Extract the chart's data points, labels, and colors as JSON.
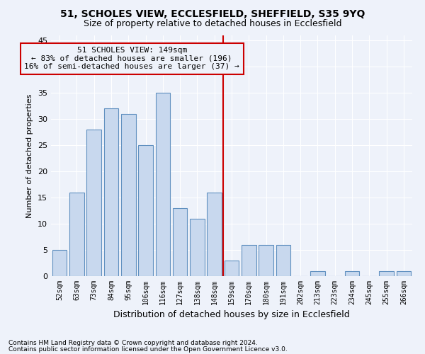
{
  "title": "51, SCHOLES VIEW, ECCLESFIELD, SHEFFIELD, S35 9YQ",
  "subtitle": "Size of property relative to detached houses in Ecclesfield",
  "xlabel": "Distribution of detached houses by size in Ecclesfield",
  "ylabel": "Number of detached properties",
  "footnote1": "Contains HM Land Registry data © Crown copyright and database right 2024.",
  "footnote2": "Contains public sector information licensed under the Open Government Licence v3.0.",
  "annotation_title": "51 SCHOLES VIEW: 149sqm",
  "annotation_line1": "← 83% of detached houses are smaller (196)",
  "annotation_line2": "16% of semi-detached houses are larger (37) →",
  "bar_color": "#c8d8ee",
  "bar_edge_color": "#6090c0",
  "vline_color": "#cc0000",
  "annotation_box_edge_color": "#cc0000",
  "background_color": "#eef2fa",
  "grid_color": "#ffffff",
  "categories": [
    "52sqm",
    "63sqm",
    "73sqm",
    "84sqm",
    "95sqm",
    "106sqm",
    "116sqm",
    "127sqm",
    "138sqm",
    "148sqm",
    "159sqm",
    "170sqm",
    "180sqm",
    "191sqm",
    "202sqm",
    "213sqm",
    "223sqm",
    "234sqm",
    "245sqm",
    "255sqm",
    "266sqm"
  ],
  "values": [
    5,
    16,
    28,
    32,
    31,
    25,
    35,
    13,
    11,
    16,
    3,
    6,
    6,
    6,
    0,
    1,
    0,
    1,
    0,
    1,
    1
  ],
  "vline_x": 9.5,
  "ylim": [
    0,
    46
  ],
  "yticks": [
    0,
    5,
    10,
    15,
    20,
    25,
    30,
    35,
    40,
    45
  ],
  "title_fontsize": 10,
  "subtitle_fontsize": 9,
  "ylabel_fontsize": 8,
  "xlabel_fontsize": 9,
  "tick_fontsize": 8,
  "xtick_fontsize": 7,
  "footnote_fontsize": 6.5,
  "annotation_fontsize": 8
}
